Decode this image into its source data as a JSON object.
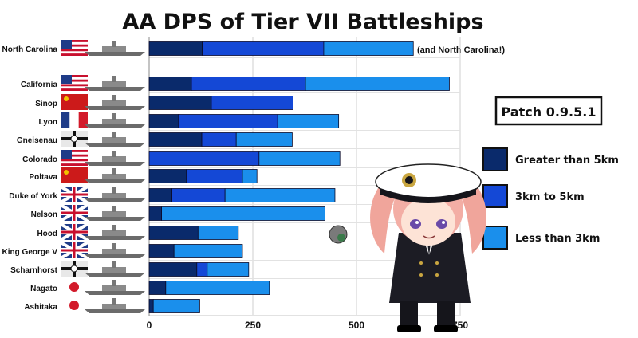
{
  "chart_data": {
    "type": "bar",
    "orientation": "horizontal",
    "stacked": true,
    "title": "AA DPS of Tier VII Battleships",
    "annotation": "(and North Carolina!)",
    "patch_label": "Patch 0.9.5.1",
    "categories": [
      "North Carolina",
      "California",
      "Sinop",
      "Lyon",
      "Gneisenau",
      "Colorado",
      "Poltava",
      "Duke of York",
      "Nelson",
      "Hood",
      "King George V",
      "Scharnhorst",
      "Nagato",
      "Ashitaka"
    ],
    "series": [
      {
        "name": "Greater than 5km",
        "color": "#0a2a6b",
        "values": [
          128,
          102,
          150,
          70,
          127,
          0,
          90,
          55,
          30,
          118,
          60,
          115,
          40,
          10
        ]
      },
      {
        "name": "3km to 5km",
        "color": "#1448d6",
        "values": [
          293,
          275,
          197,
          240,
          83,
          265,
          135,
          128,
          0,
          0,
          0,
          25,
          0,
          0
        ]
      },
      {
        "name": "Less than 3km",
        "color": "#1a8fec",
        "values": [
          216,
          347,
          0,
          147,
          135,
          195,
          35,
          265,
          394,
          97,
          165,
          100,
          250,
          112
        ]
      }
    ],
    "xticks": [
      0,
      250,
      500,
      750
    ],
    "xlim": [
      0,
      750
    ],
    "grid": true,
    "legend_position": "right",
    "flags": [
      "usa",
      "usa",
      "ussr",
      "france",
      "germany",
      "usa",
      "ussr",
      "uk",
      "uk",
      "uk",
      "uk",
      "germany",
      "japan",
      "japan"
    ]
  }
}
